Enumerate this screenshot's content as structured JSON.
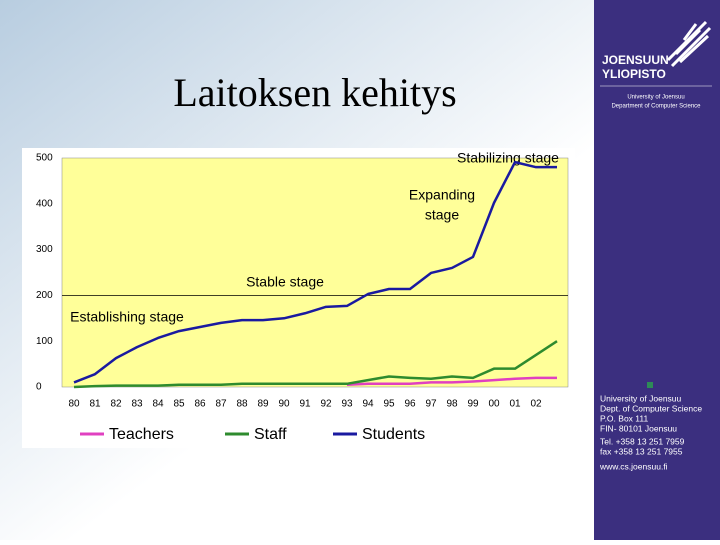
{
  "slide": {
    "title": "Laitoksen kehitys",
    "logo": [
      "JOENSUUN",
      "YLIOPISTO"
    ],
    "department": [
      "University of Joensuu",
      "Department of Computer Science"
    ],
    "contact": [
      "University of Joensuu",
      "Dept. of Computer Science",
      "P.O. Box 111",
      "FIN- 80101 Joensuu",
      "Tel. +358 13 251 7959",
      "fax +358 13 251 7955",
      "www.cs.joensuu.fi"
    ]
  },
  "chart_data": {
    "type": "line",
    "categories": [
      "80",
      "81",
      "82",
      "83",
      "84",
      "85",
      "86",
      "87",
      "88",
      "89",
      "90",
      "91",
      "92",
      "93",
      "94",
      "95",
      "96",
      "97",
      "98",
      "99",
      "00",
      "01",
      "02",
      null
    ],
    "series": [
      {
        "name": "Teachers",
        "color": "#e040c0",
        "values": [
          null,
          null,
          null,
          null,
          null,
          null,
          null,
          null,
          null,
          null,
          null,
          null,
          null,
          5,
          7,
          7,
          7,
          10,
          10,
          12,
          15,
          18,
          20,
          20
        ]
      },
      {
        "name": "Staff",
        "color": "#2e8b2e",
        "values": [
          0,
          2,
          3,
          3,
          3,
          5,
          5,
          5,
          7,
          7,
          7,
          7,
          7,
          7,
          15,
          23,
          20,
          18,
          23,
          20,
          40,
          40,
          70,
          100
        ]
      },
      {
        "name": "Students",
        "color": "#1a1aa0",
        "values": [
          10,
          28,
          63,
          87,
          107,
          122,
          131,
          140,
          146,
          146,
          150,
          161,
          175,
          177,
          203,
          214,
          214,
          249,
          260,
          284,
          402,
          491,
          480,
          480
        ]
      }
    ],
    "ylim": [
      0,
      500
    ],
    "yticks": [
      0,
      100,
      200,
      300,
      400,
      500
    ],
    "reference_line": 200,
    "annotations": [
      "Stabilizing stage",
      "Expanding",
      "stage",
      "Stable stage",
      "Establishing stage"
    ],
    "plot_color": "#ffff99",
    "grid": false
  }
}
